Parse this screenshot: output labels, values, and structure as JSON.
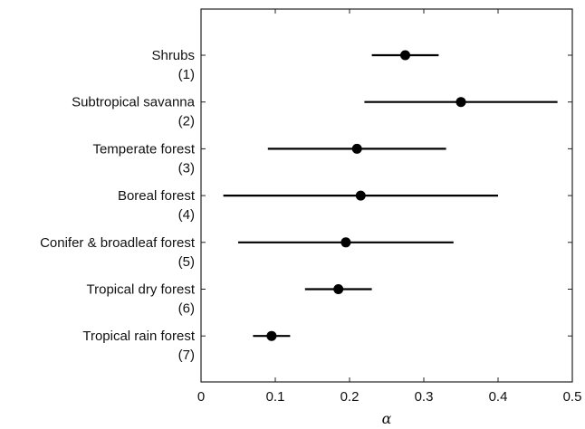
{
  "chart_data": {
    "type": "scatter",
    "title": "",
    "xlabel": "α",
    "ylabel": "",
    "xlim": [
      0,
      0.5
    ],
    "xticks": [
      "0",
      "0.1",
      "0.2",
      "0.3",
      "0.4",
      "0.5"
    ],
    "xtick_values": [
      0,
      0.1,
      0.2,
      0.3,
      0.4,
      0.5
    ],
    "grid": false,
    "legend": "none",
    "marker_color": "#000000",
    "categories": [
      {
        "name": "Shrubs",
        "index": "(1)",
        "value": 0.275,
        "low": 0.23,
        "high": 0.32
      },
      {
        "name": "Subtropical savanna",
        "index": "(2)",
        "value": 0.35,
        "low": 0.22,
        "high": 0.48
      },
      {
        "name": "Temperate forest",
        "index": "(3)",
        "value": 0.21,
        "low": 0.09,
        "high": 0.33
      },
      {
        "name": "Boreal forest",
        "index": "(4)",
        "value": 0.215,
        "low": 0.03,
        "high": 0.4
      },
      {
        "name": "Conifer & broadleaf forest",
        "index": "(5)",
        "value": 0.195,
        "low": 0.05,
        "high": 0.34
      },
      {
        "name": "Tropical dry forest",
        "index": "(6)",
        "value": 0.185,
        "low": 0.14,
        "high": 0.23
      },
      {
        "name": "Tropical rain forest",
        "index": "(7)",
        "value": 0.095,
        "low": 0.07,
        "high": 0.12
      }
    ]
  }
}
